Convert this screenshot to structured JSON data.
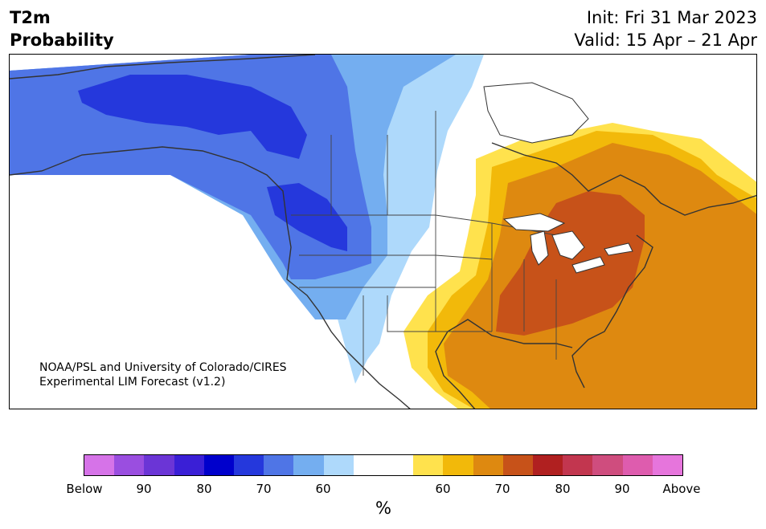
{
  "header": {
    "title_line1": "T2m",
    "title_line2": "Probability",
    "init": "Init: Fri 31 Mar 2023",
    "valid": "Valid: 15 Apr – 21 Apr"
  },
  "credit": {
    "line1": "NOAA/PSL and University of Colorado/CIRES",
    "line2": "Experimental LIM Forecast (v1.2)"
  },
  "colorbar": {
    "colors": [
      "#d673e8",
      "#9a4ee0",
      "#6b35d6",
      "#3a1fd6",
      "#0000cc",
      "#2538dc",
      "#4f75e6",
      "#74aef0",
      "#aed9fb",
      "#ffffff",
      "#ffffff",
      "#ffe24d",
      "#f2b90a",
      "#de8910",
      "#c75219",
      "#b02020",
      "#c2364f",
      "#cf4d7e",
      "#de5cae",
      "#e675dc"
    ],
    "labels": [
      "Below",
      "90",
      "80",
      "70",
      "60",
      "60",
      "70",
      "80",
      "90",
      "Above"
    ],
    "unit": "%"
  },
  "legend_meaning": {
    "blue": "below-normal temperature probability",
    "orange": "above-normal temperature probability"
  }
}
